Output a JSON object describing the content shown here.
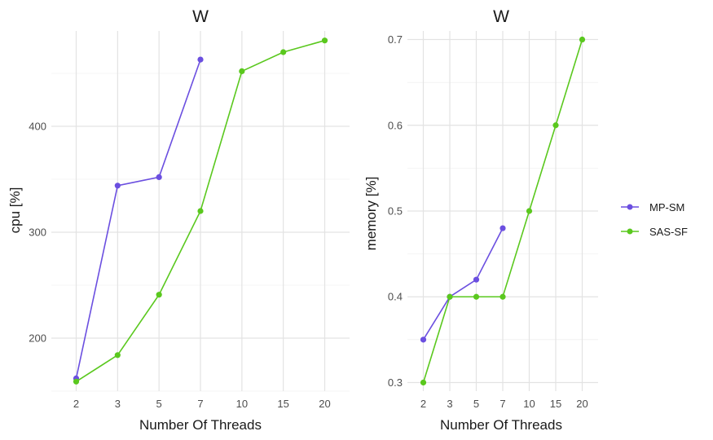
{
  "chart_data": [
    {
      "type": "line",
      "title": "W",
      "xlabel": "Number Of Threads",
      "ylabel": "cpu [%]",
      "categories": [
        "2",
        "3",
        "5",
        "7",
        "10",
        "15",
        "20"
      ],
      "yticks": [
        200,
        300,
        400
      ],
      "ylim": [
        150,
        490
      ],
      "grid": true,
      "series": [
        {
          "name": "MP-SM",
          "color": "#6b4fe0",
          "values": [
            162,
            344,
            352,
            463,
            null,
            null,
            null
          ]
        },
        {
          "name": "SAS-SF",
          "color": "#5ac81e",
          "values": [
            159,
            184,
            241,
            320,
            452,
            470,
            481
          ]
        }
      ]
    },
    {
      "type": "line",
      "title": "W",
      "xlabel": "Number Of Threads",
      "ylabel": "memory [%]",
      "categories": [
        "2",
        "3",
        "5",
        "7",
        "10",
        "15",
        "20"
      ],
      "yticks": [
        0.3,
        0.4,
        0.5,
        0.6,
        0.7
      ],
      "ylim": [
        0.29,
        0.71
      ],
      "grid": true,
      "series": [
        {
          "name": "MP-SM",
          "color": "#6b4fe0",
          "values": [
            0.35,
            0.4,
            0.42,
            0.48,
            null,
            null,
            null
          ]
        },
        {
          "name": "SAS-SF",
          "color": "#5ac81e",
          "values": [
            0.3,
            0.4,
            0.4,
            0.4,
            0.5,
            0.6,
            0.7
          ]
        }
      ]
    }
  ],
  "legend": {
    "placement": "right",
    "items": [
      {
        "label": "MP-SM",
        "color": "#6b4fe0"
      },
      {
        "label": "SAS-SF",
        "color": "#5ac81e"
      }
    ]
  }
}
